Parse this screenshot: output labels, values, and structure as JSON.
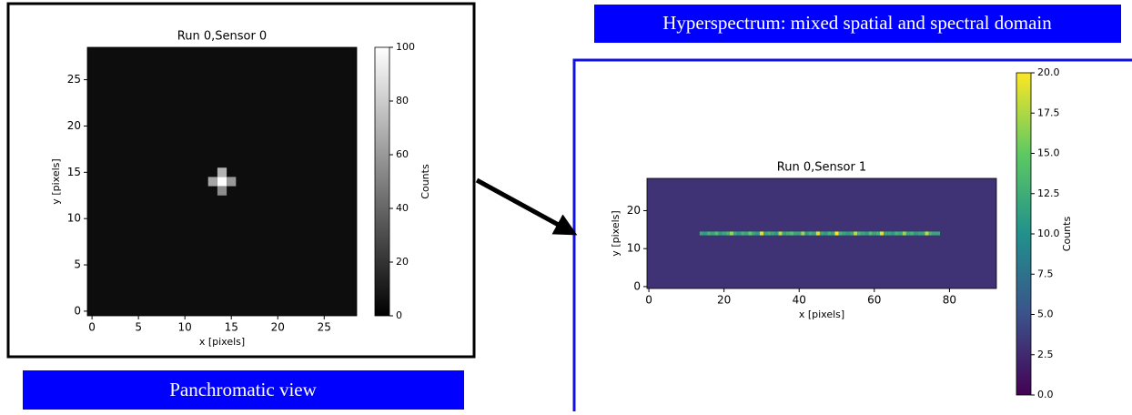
{
  "captions": {
    "panchromatic": "Panchromatic view",
    "hyperspectrum": "Hyperspectrum: mixed spatial and spectral domain"
  },
  "chart_data": [
    {
      "type": "heatmap",
      "title": "Run 0,Sensor 0",
      "x_label": "x [pixels]",
      "y_label": "y [pixels]",
      "colorbar_label": "Counts",
      "colormap": "gray",
      "clim": [
        0,
        100
      ],
      "cticks": [
        0,
        20,
        40,
        60,
        80,
        100
      ],
      "xlim": [
        -0.5,
        28.5
      ],
      "xticks": [
        0,
        5,
        10,
        15,
        20,
        25
      ],
      "ylim": [
        -0.5,
        28.5
      ],
      "yticks": [
        0,
        5,
        10,
        15,
        20,
        25
      ],
      "background": 5,
      "cells": {
        "x": [
          14,
          13,
          15,
          14,
          14
        ],
        "y": [
          14,
          14,
          14,
          15,
          13
        ],
        "values": [
          100,
          65,
          60,
          70,
          55
        ]
      }
    },
    {
      "type": "heatmap",
      "title": "Run 0,Sensor 1",
      "x_label": "x [pixels]",
      "y_label": "y [pixels]",
      "colorbar_label": "Counts",
      "colormap": "viridis",
      "clim": [
        0,
        20
      ],
      "cticks": [
        {
          "value": 0,
          "label": "0.0"
        },
        {
          "value": 2.5,
          "label": "2.5"
        },
        {
          "value": 5,
          "label": "5.0"
        },
        {
          "value": 7.5,
          "label": "7.5"
        },
        {
          "value": 10,
          "label": "10.0"
        },
        {
          "value": 12.5,
          "label": "12.5"
        },
        {
          "value": 15,
          "label": "15.0"
        },
        {
          "value": 17.5,
          "label": "17.5"
        },
        {
          "value": 20,
          "label": "20.0"
        }
      ],
      "xlim": [
        -0.5,
        92.5
      ],
      "xticks": [
        0,
        20,
        40,
        60,
        80
      ],
      "ylim": [
        -0.5,
        28.5
      ],
      "yticks": [
        0,
        10,
        20
      ],
      "background": 3,
      "cells": {
        "x": [
          14,
          15,
          16,
          17,
          18,
          19,
          20,
          21,
          22,
          23,
          24,
          25,
          26,
          27,
          28,
          29,
          30,
          31,
          32,
          33,
          34,
          35,
          36,
          37,
          38,
          39,
          40,
          41,
          42,
          43,
          44,
          45,
          46,
          47,
          48,
          49,
          50,
          51,
          52,
          53,
          54,
          55,
          56,
          57,
          58,
          59,
          60,
          61,
          62,
          63,
          64,
          65,
          66,
          67,
          68,
          69,
          70,
          71,
          72,
          73,
          74,
          75,
          76,
          77
        ],
        "y": [
          14,
          14,
          14,
          14,
          14,
          14,
          14,
          14,
          14,
          14,
          14,
          14,
          14,
          14,
          14,
          14,
          14,
          14,
          14,
          14,
          14,
          14,
          14,
          14,
          14,
          14,
          14,
          14,
          14,
          14,
          14,
          14,
          14,
          14,
          14,
          14,
          14,
          14,
          14,
          14,
          14,
          14,
          14,
          14,
          14,
          14,
          14,
          14,
          14,
          14,
          14,
          14,
          14,
          14,
          14,
          14,
          14,
          14,
          14,
          14,
          14,
          14,
          14,
          14
        ],
        "values": [
          12,
          11,
          13,
          12,
          14,
          11,
          12,
          13,
          17,
          12,
          11,
          13,
          12,
          15,
          12,
          11,
          19,
          12,
          13,
          12,
          11,
          18,
          12,
          13,
          14,
          12,
          12,
          17,
          11,
          13,
          12,
          19,
          12,
          11,
          13,
          12,
          20,
          13,
          12,
          11,
          12,
          18,
          13,
          12,
          11,
          14,
          12,
          13,
          19,
          12,
          12,
          11,
          13,
          12,
          17,
          12,
          13,
          11,
          12,
          12,
          18,
          13,
          12,
          12
        ]
      }
    }
  ]
}
